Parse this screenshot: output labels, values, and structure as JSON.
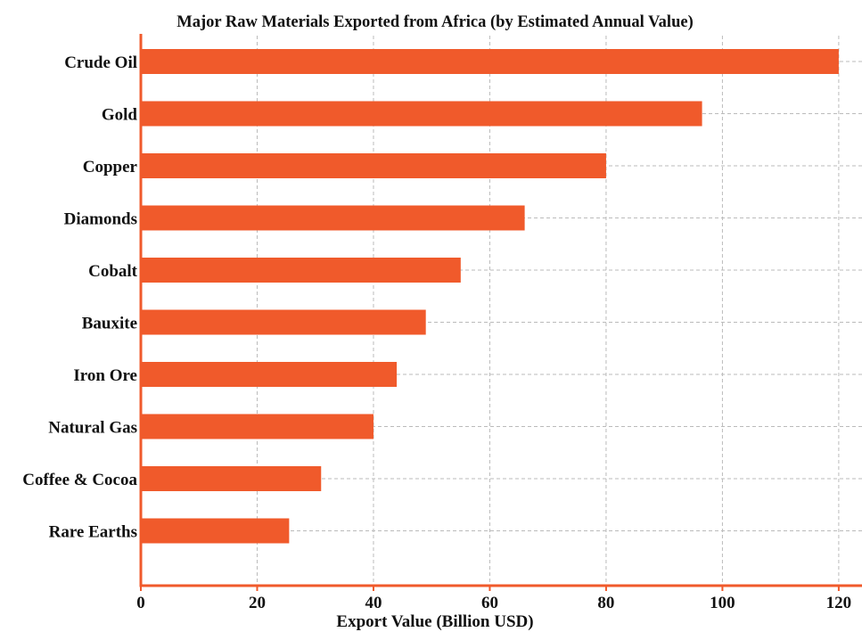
{
  "chart_data": {
    "type": "bar",
    "orientation": "horizontal",
    "title": "Major Raw Materials Exported from Africa (by Estimated Annual Value)",
    "xlabel": "Export Value (Billion USD)",
    "ylabel": "",
    "categories": [
      "Crude Oil",
      "Gold",
      "Copper",
      "Diamonds",
      "Cobalt",
      "Bauxite",
      "Iron Ore",
      "Natural Gas",
      "Coffee & Cocoa",
      "Rare Earths"
    ],
    "values": [
      120,
      96.5,
      80,
      66,
      55,
      49,
      44,
      40,
      31,
      25.5
    ],
    "xlim": [
      0,
      124
    ],
    "xticks": [
      0,
      20,
      40,
      60,
      80,
      100,
      120
    ],
    "grid": true,
    "bar_color": "#f05a2b",
    "axis_color": "#f05a2b"
  }
}
